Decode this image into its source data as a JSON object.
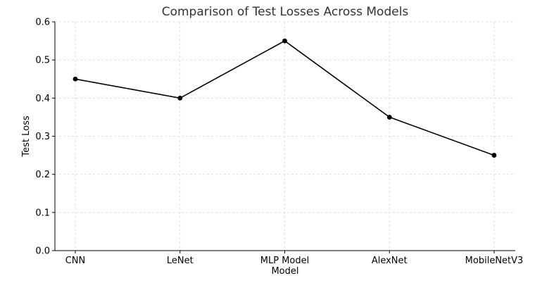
{
  "chart_data": {
    "type": "line",
    "title": "Comparison of Test Losses Across Models",
    "xlabel": "Model",
    "ylabel": "Test Loss",
    "categories": [
      "CNN",
      "LeNet",
      "MLP Model",
      "AlexNet",
      "MobileNetV3"
    ],
    "series": [
      {
        "values": [
          0.45,
          0.4,
          0.55,
          0.35,
          0.25
        ]
      }
    ],
    "ylim": [
      0.0,
      0.6
    ],
    "yticks": [
      "0.0",
      "0.1",
      "0.2",
      "0.3",
      "0.4",
      "0.5",
      "0.6"
    ],
    "grid": true,
    "marker": "circle",
    "colors": {
      "line": "#000000",
      "marker": "#000000",
      "grid": "#d9d9d9",
      "title": "#333333"
    }
  }
}
